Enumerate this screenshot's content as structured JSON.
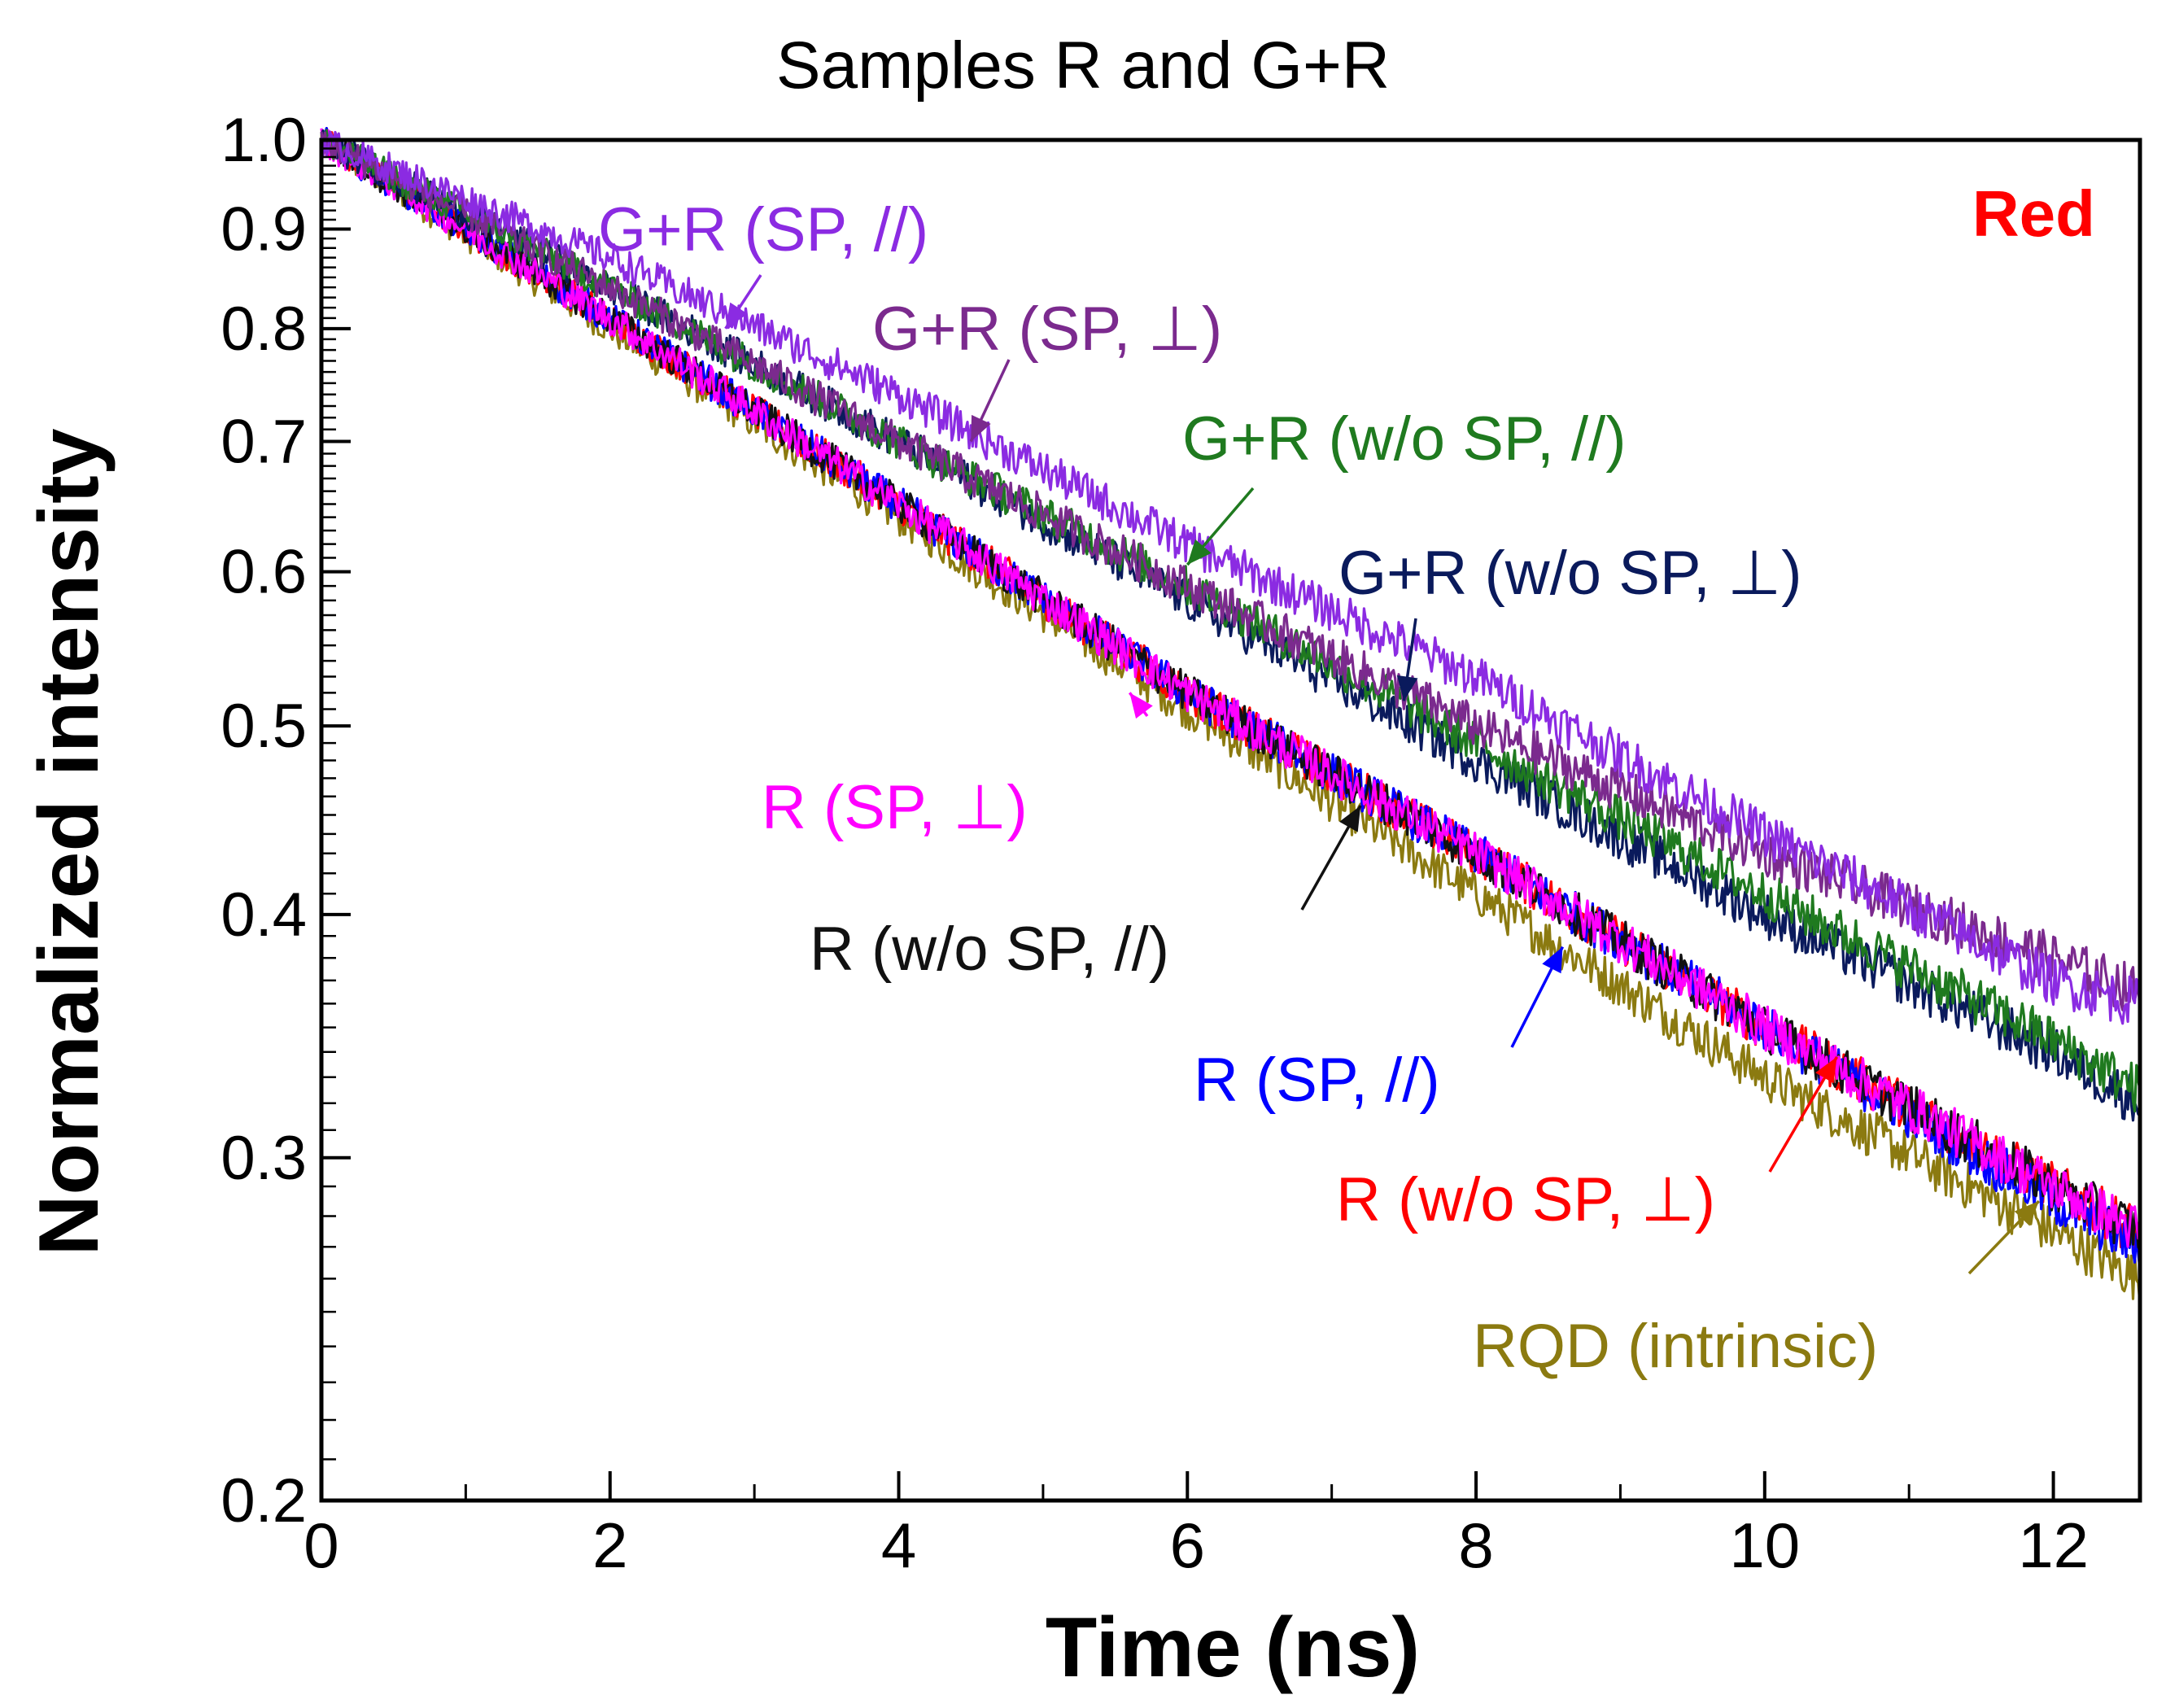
{
  "chart_data": {
    "type": "line",
    "title": "Samples R and G+R",
    "xlabel": "Time (ns)",
    "ylabel": "Normalized intensity",
    "corner_label": "Red",
    "corner_color": "#ff0000",
    "xlim": [
      0,
      12.6
    ],
    "ylim": [
      0.2,
      1.0
    ],
    "yscale": "log",
    "x_ticks": [
      0,
      2,
      4,
      6,
      8,
      10,
      12
    ],
    "x_tick_labels": [
      "0",
      "2",
      "4",
      "6",
      "8",
      "10",
      "12"
    ],
    "y_ticks": [
      0.2,
      0.3,
      0.4,
      0.5,
      0.6,
      0.7,
      0.8,
      0.9,
      1.0
    ],
    "y_tick_labels": [
      "0.2",
      "0.3",
      "0.4",
      "0.5",
      "0.6",
      "0.7",
      "0.8",
      "0.9",
      "1.0"
    ],
    "series": [
      {
        "name": "G+R (SP, //)",
        "color": "#8b2be2",
        "x": [
          0,
          2,
          4,
          6,
          8,
          10,
          12,
          12.6
        ],
        "y": [
          1.0,
          0.87,
          0.74,
          0.62,
          0.53,
          0.44,
          0.37,
          0.36
        ]
      },
      {
        "name": "G+R (SP, ⊥)",
        "color": "#7b2a8e",
        "x": [
          0,
          2,
          4,
          6,
          8,
          10,
          12,
          12.6
        ],
        "y": [
          1.0,
          0.84,
          0.7,
          0.59,
          0.5,
          0.43,
          0.38,
          0.365
        ]
      },
      {
        "name": "G+R (w/o SP, //)",
        "color": "#1f7a1f",
        "x": [
          0,
          2,
          4,
          6,
          8,
          10,
          12,
          12.6
        ],
        "y": [
          1.0,
          0.84,
          0.7,
          0.59,
          0.49,
          0.41,
          0.345,
          0.325
        ]
      },
      {
        "name": "G+R (w/o SP, ⊥)",
        "color": "#0a1a5c",
        "x": [
          0,
          2,
          4,
          6,
          8,
          10,
          12,
          12.6
        ],
        "y": [
          1.0,
          0.84,
          0.7,
          0.58,
          0.48,
          0.4,
          0.34,
          0.32
        ]
      },
      {
        "name": "R (SP, ⊥)",
        "color": "#ff00ff",
        "x": [
          0,
          2,
          4,
          6,
          8,
          10,
          12,
          12.6
        ],
        "y": [
          1.0,
          0.81,
          0.65,
          0.52,
          0.43,
          0.35,
          0.29,
          0.275
        ]
      },
      {
        "name": "R (w/o SP, //)",
        "color": "#111111",
        "x": [
          0,
          2,
          4,
          6,
          8,
          10,
          12,
          12.6
        ],
        "y": [
          1.0,
          0.81,
          0.65,
          0.52,
          0.43,
          0.35,
          0.29,
          0.275
        ]
      },
      {
        "name": "R (SP, //)",
        "color": "#0000ff",
        "x": [
          0,
          2,
          4,
          6,
          8,
          10,
          12,
          12.6
        ],
        "y": [
          1.0,
          0.81,
          0.65,
          0.52,
          0.43,
          0.35,
          0.285,
          0.27
        ]
      },
      {
        "name": "R (w/o SP, ⊥)",
        "color": "#ff0000",
        "x": [
          0,
          2,
          4,
          6,
          8,
          10,
          12,
          12.6
        ],
        "y": [
          1.0,
          0.81,
          0.65,
          0.52,
          0.43,
          0.35,
          0.29,
          0.275
        ]
      },
      {
        "name": "RQD (intrinsic)",
        "color": "#8b7a10",
        "x": [
          0,
          2,
          4,
          6,
          8,
          10,
          12,
          12.6
        ],
        "y": [
          1.0,
          0.8,
          0.64,
          0.51,
          0.41,
          0.33,
          0.275,
          0.26
        ]
      }
    ],
    "annotations": [
      {
        "text": "G+R (SP, //)",
        "color": "#8b2be2",
        "target": [
          2.8,
          0.8
        ]
      },
      {
        "text": "G+R (SP, ⊥)",
        "color": "#7b2a8e",
        "target": [
          4.5,
          0.7
        ]
      },
      {
        "text": "G+R (w/o SP, //)",
        "color": "#1f7a1f",
        "target": [
          6.0,
          0.605
        ]
      },
      {
        "text": "G+R (w/o SP, ⊥)",
        "color": "#0a1a5c",
        "target": [
          7.5,
          0.515
        ]
      },
      {
        "text": "R (SP, ⊥)",
        "color": "#ff00ff",
        "target": [
          5.6,
          0.52
        ]
      },
      {
        "text": "R (w/o SP, //)",
        "color": "#111111",
        "target": [
          7.2,
          0.455
        ]
      },
      {
        "text": "R (SP, //)",
        "color": "#0000ff",
        "target": [
          8.6,
          0.385
        ]
      },
      {
        "text": "R (w/o SP, ⊥)",
        "color": "#ff0000",
        "target": [
          10.5,
          0.338
        ]
      },
      {
        "text": "RQD (intrinsic)",
        "color": "#8b7a10",
        "target": [
          11.9,
          0.285
        ]
      }
    ]
  }
}
